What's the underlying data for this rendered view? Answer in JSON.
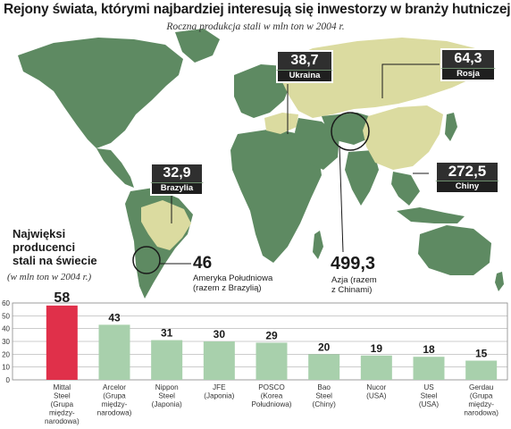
{
  "header": {
    "title": "Rejony świata, którymi najbardziej interesują się inwestorzy w branży hutniczej",
    "subtitle": "Roczna produkcja stali w mln ton w 2004 r."
  },
  "map": {
    "colors": {
      "land": "#5e8a62",
      "highlight": "#dbdba0",
      "ocean": "#ffffff",
      "box": "#2f2f2f"
    },
    "regions": [
      {
        "name": "Ukraina",
        "value": "38,7"
      },
      {
        "name": "Rosja",
        "value": "64,3"
      },
      {
        "name": "Brazylia",
        "value": "32,9"
      },
      {
        "name": "Chiny",
        "value": "272,5"
      }
    ],
    "callouts": [
      {
        "value": "46",
        "text": "Ameryka Południowa\n(razem z Brazylią)"
      },
      {
        "value": "499,3",
        "text": "Azja (razem\nz Chinami)"
      }
    ]
  },
  "left_panel": {
    "title": "Najwięksi\nproducenci\nstali na świecie",
    "unit": "(w mln ton w 2004 r.)"
  },
  "chart_data": {
    "type": "bar",
    "categories": [
      "Mittal Steel (Grupa między-narodowa)",
      "Arcelor (Grupa między-narodowa)",
      "Nippon Steel (Japonia)",
      "JFE (Japonia)",
      "POSCO (Korea Południowa)",
      "Bao Steel (Chiny)",
      "Nucor (USA)",
      "US Steel (USA)",
      "Gerdau (Grupa między-narodowa)"
    ],
    "category_lines": [
      [
        "Mittal",
        "Steel",
        "(Grupa",
        "między-",
        "narodowa)"
      ],
      [
        "Arcelor",
        "(Grupa",
        "między-",
        "narodowa)"
      ],
      [
        "Nippon",
        "Steel",
        "(Japonia)"
      ],
      [
        "JFE",
        "(Japonia)"
      ],
      [
        "POSCO",
        "(Korea",
        "Południowa)"
      ],
      [
        "Bao",
        "Steel",
        "(Chiny)"
      ],
      [
        "Nucor",
        "(USA)"
      ],
      [
        "US",
        "Steel",
        "(USA)"
      ],
      [
        "Gerdau",
        "(Grupa",
        "między-",
        "narodowa)"
      ]
    ],
    "values": [
      58,
      43,
      31,
      30,
      29,
      20,
      19,
      18,
      15
    ],
    "yticks": [
      0,
      10,
      20,
      30,
      40,
      50,
      60
    ],
    "ylim": [
      0,
      60
    ],
    "grid": true,
    "colors": {
      "highlight": "#e0304a",
      "bar": "#a8d0ac",
      "grid": "#999999"
    },
    "highlight_index": 0
  }
}
